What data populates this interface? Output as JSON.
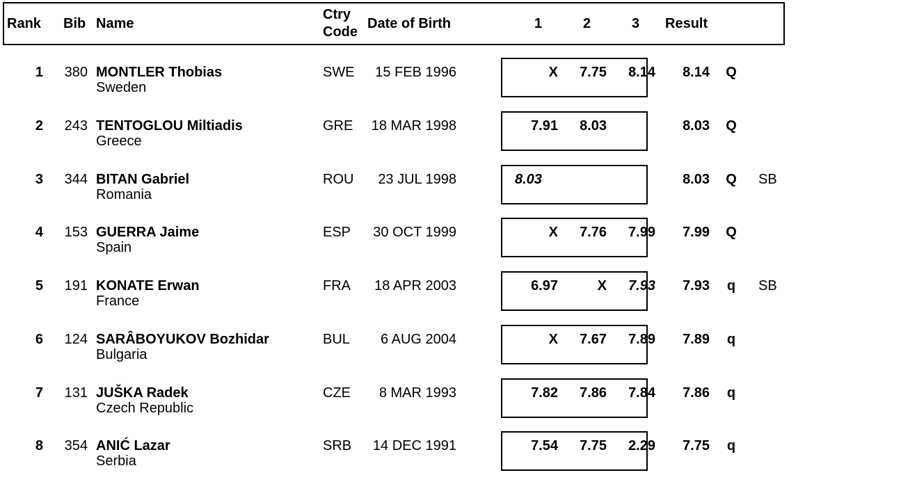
{
  "header": {
    "rank": "Rank",
    "bib": "Bib",
    "name": "Name",
    "ctry_line1": "Ctry",
    "ctry_line2": "Code",
    "dob": "Date of Birth",
    "att1": "1",
    "att2": "2",
    "att3": "3",
    "result": "Result"
  },
  "rows": [
    {
      "rank": "1",
      "bib": "380",
      "name": "MONTLER Thobias",
      "country": "Sweden",
      "code": "SWE",
      "dob": "15 FEB 1996",
      "a1": "X",
      "a2": "7.75",
      "a3": "8.14",
      "result": "8.14",
      "q": "Q",
      "note": ""
    },
    {
      "rank": "2",
      "bib": "243",
      "name": "TENTOGLOU Miltiadis",
      "country": "Greece",
      "code": "GRE",
      "dob": "18 MAR 1998",
      "a1": "7.91",
      "a2": "8.03",
      "a3": "",
      "result": "8.03",
      "q": "Q",
      "note": ""
    },
    {
      "rank": "3",
      "bib": "344",
      "name": "BITAN Gabriel",
      "country": "Romania",
      "code": "ROU",
      "dob": "23 JUL 1998",
      "a1": "8.03",
      "a2": "",
      "a3": "",
      "result": "8.03",
      "q": "Q",
      "note": "SB"
    },
    {
      "rank": "4",
      "bib": "153",
      "name": "GUERRA Jaime",
      "country": "Spain",
      "code": "ESP",
      "dob": "30 OCT 1999",
      "a1": "X",
      "a2": "7.76",
      "a3": "7.99",
      "result": "7.99",
      "q": "Q",
      "note": ""
    },
    {
      "rank": "5",
      "bib": "191",
      "name": "KONATE Erwan",
      "country": "France",
      "code": "FRA",
      "dob": "18 APR 2003",
      "a1": "6.97",
      "a2": "X",
      "a3": "7.93",
      "result": "7.93",
      "q": "q",
      "note": "SB"
    },
    {
      "rank": "6",
      "bib": "124",
      "name": "SARÂBOYUKOV Bozhidar",
      "country": "Bulgaria",
      "code": "BUL",
      "dob": "6 AUG 2004",
      "a1": "X",
      "a2": "7.67",
      "a3": "7.89",
      "result": "7.89",
      "q": "q",
      "note": ""
    },
    {
      "rank": "7",
      "bib": "131",
      "name": "JUŠKA Radek",
      "country": "Czech Republic",
      "code": "CZE",
      "dob": "8 MAR 1993",
      "a1": "7.82",
      "a2": "7.86",
      "a3": "7.84",
      "result": "7.86",
      "q": "q",
      "note": ""
    },
    {
      "rank": "8",
      "bib": "354",
      "name": "ANIĆ Lazar",
      "country": "Serbia",
      "code": "SRB",
      "dob": "14 DEC 1991",
      "a1": "7.54",
      "a2": "7.75",
      "a3": "2.29",
      "result": "7.75",
      "q": "q",
      "note": ""
    }
  ]
}
